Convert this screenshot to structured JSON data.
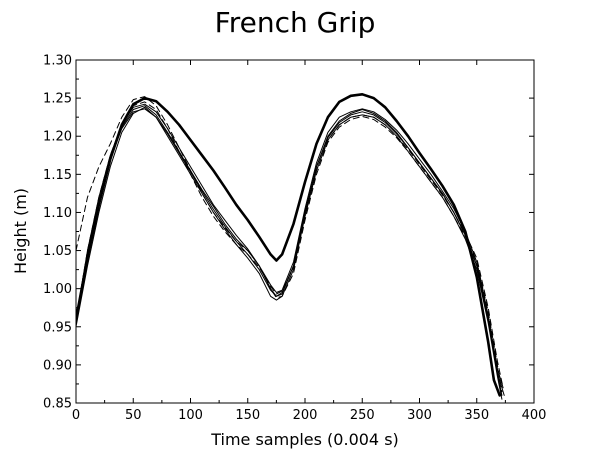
{
  "chart_data": {
    "type": "line",
    "title": "French Grip",
    "xlabel": "Time samples (0.004 s)",
    "ylabel": "Height (m)",
    "xlim": [
      0,
      400
    ],
    "ylim": [
      0.85,
      1.3
    ],
    "xticks": [
      0,
      50,
      100,
      150,
      200,
      250,
      300,
      350,
      400
    ],
    "yticks": [
      0.85,
      0.9,
      0.95,
      1.0,
      1.05,
      1.1,
      1.15,
      1.2,
      1.25,
      1.3
    ],
    "grid": false,
    "legend": "none",
    "series": [
      {
        "style": "bold",
        "x": [
          0,
          10,
          20,
          30,
          40,
          50,
          60,
          70,
          80,
          90,
          100,
          110,
          120,
          130,
          140,
          150,
          160,
          170,
          175,
          180,
          190,
          200,
          210,
          220,
          230,
          240,
          250,
          260,
          270,
          280,
          290,
          300,
          310,
          320,
          330,
          340,
          350,
          360,
          365,
          370
        ],
        "y": [
          0.96,
          1.04,
          1.11,
          1.17,
          1.215,
          1.242,
          1.25,
          1.246,
          1.232,
          1.215,
          1.195,
          1.175,
          1.155,
          1.133,
          1.11,
          1.09,
          1.068,
          1.045,
          1.037,
          1.045,
          1.085,
          1.14,
          1.19,
          1.225,
          1.245,
          1.253,
          1.255,
          1.25,
          1.238,
          1.22,
          1.2,
          1.178,
          1.157,
          1.135,
          1.11,
          1.075,
          1.015,
          0.93,
          0.88,
          0.86
        ]
      },
      {
        "style": "thin",
        "x": [
          0,
          10,
          20,
          30,
          40,
          50,
          60,
          70,
          80,
          90,
          100,
          110,
          120,
          130,
          140,
          150,
          160,
          170,
          175,
          180,
          190,
          200,
          210,
          220,
          230,
          240,
          250,
          260,
          270,
          280,
          290,
          300,
          310,
          320,
          330,
          340,
          350,
          360,
          368,
          372
        ],
        "y": [
          0.955,
          1.04,
          1.11,
          1.17,
          1.212,
          1.235,
          1.24,
          1.228,
          1.205,
          1.18,
          1.155,
          1.13,
          1.108,
          1.085,
          1.065,
          1.05,
          1.03,
          1.0,
          0.99,
          0.995,
          1.03,
          1.1,
          1.16,
          1.2,
          1.22,
          1.23,
          1.235,
          1.23,
          1.22,
          1.205,
          1.185,
          1.165,
          1.145,
          1.125,
          1.1,
          1.07,
          1.03,
          0.96,
          0.89,
          0.86
        ]
      },
      {
        "style": "thin",
        "x": [
          0,
          10,
          20,
          30,
          40,
          50,
          60,
          70,
          80,
          90,
          100,
          110,
          120,
          130,
          140,
          150,
          160,
          170,
          175,
          180,
          190,
          200,
          210,
          220,
          230,
          240,
          250,
          260,
          270,
          280,
          290,
          300,
          310,
          320,
          330,
          340,
          350,
          360,
          368,
          373
        ],
        "y": [
          0.96,
          1.05,
          1.12,
          1.175,
          1.215,
          1.238,
          1.242,
          1.232,
          1.21,
          1.185,
          1.16,
          1.135,
          1.11,
          1.09,
          1.07,
          1.052,
          1.03,
          1.005,
          0.995,
          0.998,
          1.035,
          1.105,
          1.165,
          1.205,
          1.225,
          1.232,
          1.236,
          1.232,
          1.222,
          1.208,
          1.19,
          1.17,
          1.15,
          1.128,
          1.105,
          1.075,
          1.035,
          0.965,
          0.895,
          0.87
        ]
      },
      {
        "style": "thin",
        "x": [
          0,
          10,
          20,
          30,
          40,
          50,
          60,
          70,
          80,
          90,
          100,
          110,
          120,
          130,
          140,
          150,
          160,
          170,
          175,
          180,
          190,
          200,
          210,
          220,
          230,
          240,
          250,
          260,
          270,
          280,
          290,
          300,
          310,
          320,
          330,
          340,
          350,
          360,
          368,
          372
        ],
        "y": [
          0.95,
          1.03,
          1.1,
          1.16,
          1.205,
          1.23,
          1.238,
          1.225,
          1.2,
          1.175,
          1.15,
          1.125,
          1.1,
          1.078,
          1.058,
          1.04,
          1.02,
          0.99,
          0.985,
          0.99,
          1.025,
          1.095,
          1.155,
          1.195,
          1.215,
          1.225,
          1.228,
          1.225,
          1.215,
          1.2,
          1.18,
          1.16,
          1.14,
          1.12,
          1.095,
          1.065,
          1.025,
          0.955,
          0.885,
          0.855
        ]
      },
      {
        "style": "thin",
        "x": [
          0,
          10,
          20,
          30,
          40,
          50,
          60,
          70,
          80,
          90,
          100,
          110,
          120,
          130,
          140,
          150,
          160,
          170,
          175,
          180,
          190,
          200,
          210,
          220,
          230,
          240,
          250,
          260,
          270,
          280,
          290,
          300,
          310,
          320,
          330,
          340,
          350,
          360,
          368,
          374
        ],
        "y": [
          0.96,
          1.045,
          1.115,
          1.17,
          1.21,
          1.232,
          1.236,
          1.225,
          1.203,
          1.178,
          1.153,
          1.128,
          1.104,
          1.082,
          1.062,
          1.045,
          1.025,
          0.998,
          0.99,
          0.993,
          1.03,
          1.1,
          1.16,
          1.198,
          1.218,
          1.228,
          1.232,
          1.228,
          1.218,
          1.203,
          1.185,
          1.165,
          1.145,
          1.125,
          1.1,
          1.07,
          1.03,
          0.96,
          0.89,
          0.86
        ]
      },
      {
        "style": "dashed",
        "x": [
          0,
          10,
          20,
          30,
          40,
          50,
          60,
          70,
          80,
          90,
          100,
          110,
          120,
          130,
          140,
          150,
          160,
          170,
          175,
          180,
          190,
          200,
          210,
          220,
          230,
          240,
          250,
          260,
          270,
          280,
          290,
          300,
          310,
          320,
          330,
          340,
          350,
          360,
          368,
          372
        ],
        "y": [
          1.05,
          1.12,
          1.16,
          1.19,
          1.225,
          1.248,
          1.252,
          1.24,
          1.215,
          1.185,
          1.155,
          1.125,
          1.1,
          1.08,
          1.062,
          1.05,
          1.03,
          1.0,
          0.988,
          0.99,
          1.02,
          1.09,
          1.15,
          1.192,
          1.212,
          1.222,
          1.226,
          1.222,
          1.212,
          1.198,
          1.18,
          1.16,
          1.14,
          1.12,
          1.095,
          1.068,
          1.035,
          0.97,
          0.9,
          0.865
        ]
      },
      {
        "style": "dashed",
        "x": [
          0,
          10,
          20,
          30,
          40,
          50,
          60,
          70,
          80,
          90,
          100,
          110,
          120,
          130,
          140,
          150,
          160,
          170,
          175,
          180,
          190,
          200,
          210,
          220,
          230,
          240,
          250,
          260,
          270,
          280,
          290,
          300,
          310,
          320,
          330,
          340,
          350,
          360,
          368,
          373
        ],
        "y": [
          0.96,
          1.05,
          1.12,
          1.175,
          1.215,
          1.24,
          1.245,
          1.235,
          1.21,
          1.18,
          1.15,
          1.12,
          1.095,
          1.075,
          1.058,
          1.045,
          1.028,
          1.003,
          0.993,
          0.997,
          1.028,
          1.095,
          1.155,
          1.195,
          1.215,
          1.225,
          1.228,
          1.225,
          1.215,
          1.2,
          1.183,
          1.163,
          1.143,
          1.123,
          1.1,
          1.072,
          1.04,
          0.975,
          0.905,
          0.87
        ]
      }
    ]
  }
}
